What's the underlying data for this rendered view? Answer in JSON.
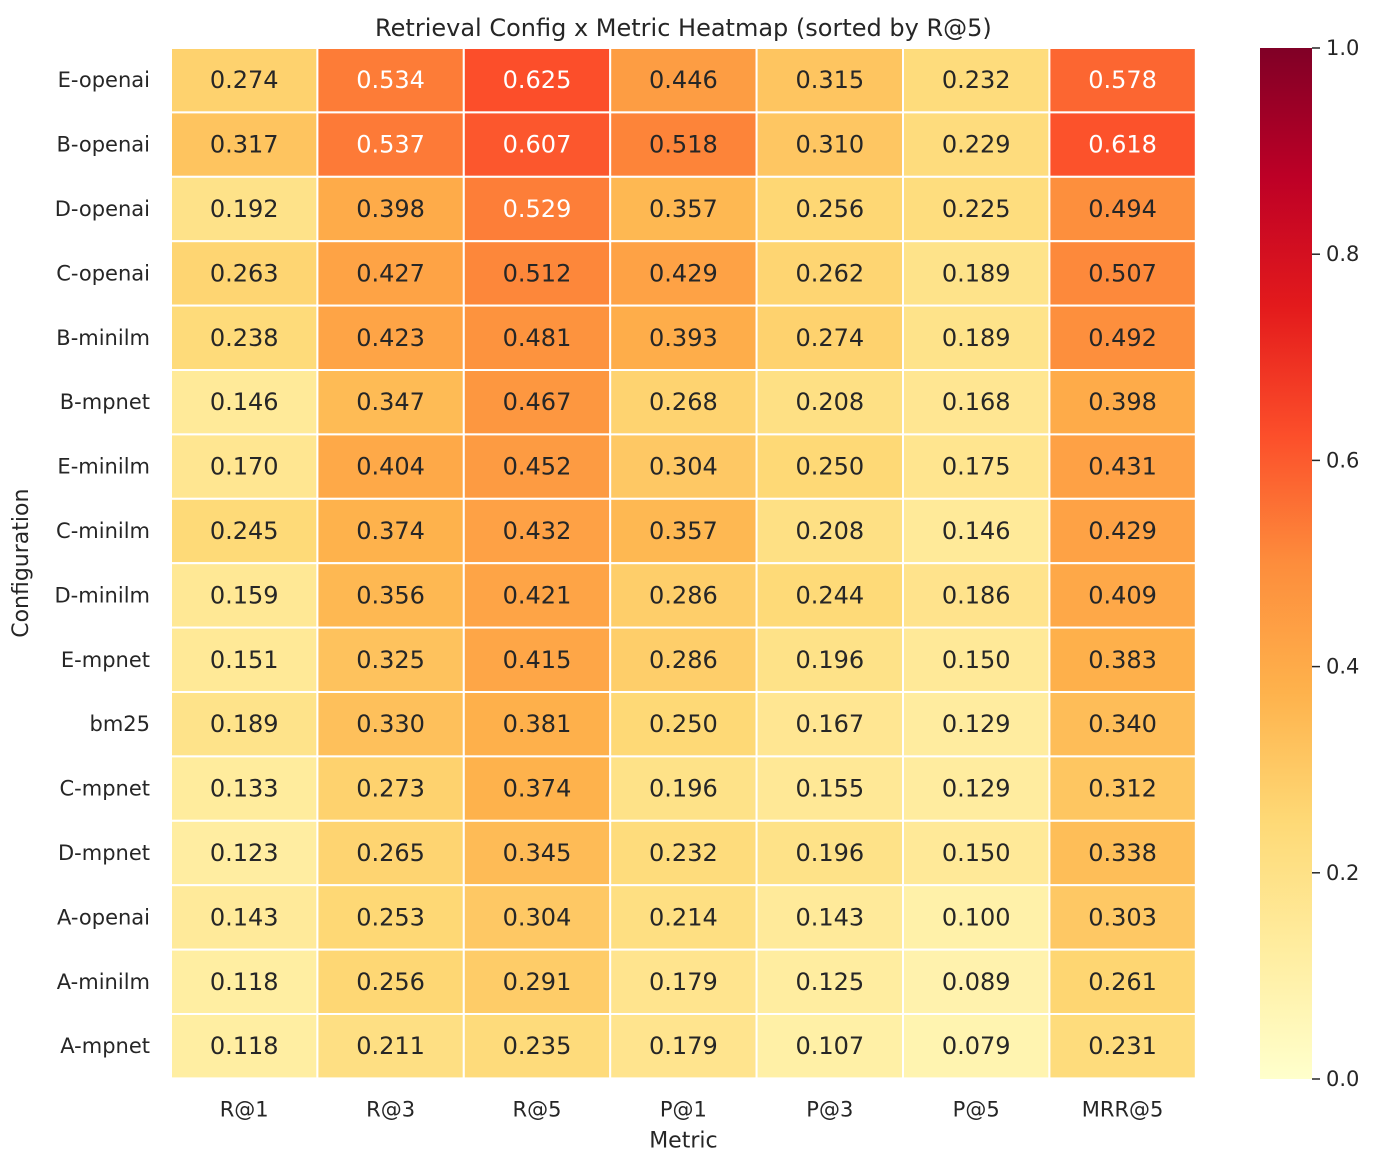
{
  "chart_data": {
    "type": "heatmap",
    "title": "Retrieval Config x Metric Heatmap (sorted by R@5)",
    "xlabel": "Metric",
    "ylabel": "Configuration",
    "columns": [
      "R@1",
      "R@3",
      "R@5",
      "P@1",
      "P@3",
      "P@5",
      "MRR@5"
    ],
    "rows": [
      "E-openai",
      "B-openai",
      "D-openai",
      "C-openai",
      "B-minilm",
      "B-mpnet",
      "E-minilm",
      "C-minilm",
      "D-minilm",
      "E-mpnet",
      "bm25",
      "C-mpnet",
      "D-mpnet",
      "A-openai",
      "A-minilm",
      "A-mpnet"
    ],
    "values": [
      [
        0.274,
        0.534,
        0.625,
        0.446,
        0.315,
        0.232,
        0.578
      ],
      [
        0.317,
        0.537,
        0.607,
        0.518,
        0.31,
        0.229,
        0.618
      ],
      [
        0.192,
        0.398,
        0.529,
        0.357,
        0.256,
        0.225,
        0.494
      ],
      [
        0.263,
        0.427,
        0.512,
        0.429,
        0.262,
        0.189,
        0.507
      ],
      [
        0.238,
        0.423,
        0.481,
        0.393,
        0.274,
        0.189,
        0.492
      ],
      [
        0.146,
        0.347,
        0.467,
        0.268,
        0.208,
        0.168,
        0.398
      ],
      [
        0.17,
        0.404,
        0.452,
        0.304,
        0.25,
        0.175,
        0.431
      ],
      [
        0.245,
        0.374,
        0.432,
        0.357,
        0.208,
        0.146,
        0.429
      ],
      [
        0.159,
        0.356,
        0.421,
        0.286,
        0.244,
        0.186,
        0.409
      ],
      [
        0.151,
        0.325,
        0.415,
        0.286,
        0.196,
        0.15,
        0.383
      ],
      [
        0.189,
        0.33,
        0.381,
        0.25,
        0.167,
        0.129,
        0.34
      ],
      [
        0.133,
        0.273,
        0.374,
        0.196,
        0.155,
        0.129,
        0.312
      ],
      [
        0.123,
        0.265,
        0.345,
        0.232,
        0.196,
        0.15,
        0.338
      ],
      [
        0.143,
        0.253,
        0.304,
        0.214,
        0.143,
        0.1,
        0.303
      ],
      [
        0.118,
        0.256,
        0.291,
        0.179,
        0.125,
        0.089,
        0.261
      ],
      [
        0.118,
        0.211,
        0.235,
        0.179,
        0.107,
        0.079,
        0.231
      ]
    ],
    "value_format": "3 decimals",
    "colormap": "YlOrRd",
    "vmin": 0.0,
    "vmax": 1.0,
    "colorbar_ticks": [
      "0.0",
      "0.2",
      "0.4",
      "0.6",
      "0.8",
      "1.0"
    ],
    "colorbar_tick_values": [
      0.0,
      0.2,
      0.4,
      0.6,
      0.8,
      1.0
    ],
    "grid": "white cell borders"
  }
}
